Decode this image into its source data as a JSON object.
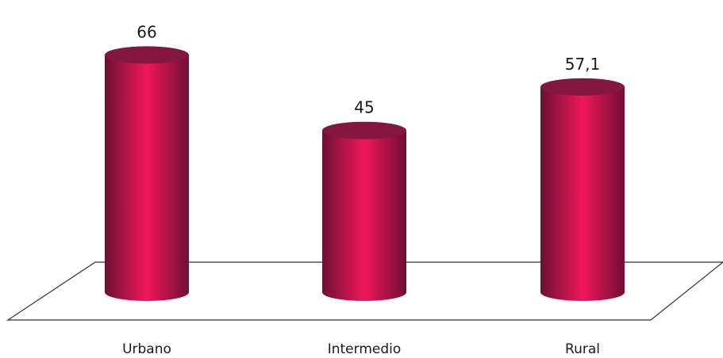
{
  "chart_data": {
    "type": "bar",
    "style": "3d-cylinder",
    "categories": [
      "Urbano",
      "Intermedio",
      "Rural"
    ],
    "values": [
      66,
      45,
      57.1
    ],
    "value_labels": [
      "66",
      "45",
      "57,1"
    ],
    "ylim": [
      0,
      66
    ],
    "grid": false,
    "legend": "none",
    "colors": {
      "bar_light": "#f0175a",
      "bar_dark": "#6e0f33",
      "top_face": "#85163f",
      "floor_line": "#333333"
    }
  }
}
